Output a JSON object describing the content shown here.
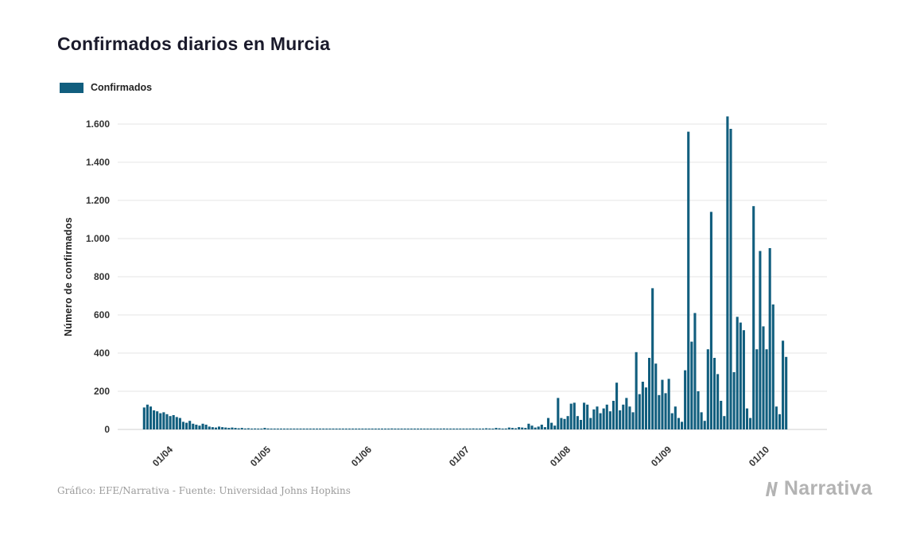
{
  "page": {
    "title": "Confirmados diarios en Murcia",
    "footer_credit": "Gráfico: EFE/Narrativa - Fuente: Universidad Johns Hopkins",
    "brand": "Narrativa"
  },
  "legend": {
    "label": "Confirmados",
    "color": "#115e7e"
  },
  "chart_data": {
    "type": "bar",
    "title": "Confirmados diarios en Murcia",
    "xlabel": "",
    "ylabel": "Número de confirmados",
    "ylim": [
      0,
      1600
    ],
    "grid": true,
    "legend_position": "top-left",
    "bar_color": "#115e7e",
    "ytick_labels": [
      "0",
      "200",
      "400",
      "600",
      "800",
      "1.000",
      "1.200",
      "1.400",
      "1.600"
    ],
    "xtick_labels": [
      "01/04",
      "01/05",
      "01/06",
      "01/07",
      "01/08",
      "01/09",
      "01/10"
    ],
    "xtick_indices": [
      7,
      37,
      68,
      98,
      129,
      160,
      190
    ],
    "series": [
      {
        "name": "Confirmados",
        "values": [
          115,
          130,
          120,
          100,
          95,
          85,
          90,
          80,
          70,
          75,
          65,
          60,
          40,
          35,
          45,
          30,
          25,
          20,
          30,
          25,
          15,
          12,
          10,
          15,
          12,
          10,
          8,
          10,
          8,
          6,
          8,
          5,
          6,
          4,
          5,
          3,
          4,
          8,
          5,
          3,
          2,
          4,
          3,
          2,
          2,
          3,
          2,
          1,
          2,
          3,
          2,
          4,
          3,
          2,
          1,
          2,
          3,
          4,
          2,
          3,
          2,
          1,
          2,
          3,
          4,
          3,
          2,
          2,
          2,
          1,
          2,
          3,
          2,
          1,
          1,
          2,
          5,
          3,
          2,
          1,
          2,
          1,
          3,
          2,
          1,
          1,
          2,
          3,
          2,
          1,
          2,
          3,
          5,
          2,
          1,
          2,
          1,
          2,
          3,
          2,
          4,
          5,
          3,
          2,
          4,
          6,
          5,
          3,
          8,
          6,
          4,
          5,
          10,
          8,
          6,
          12,
          10,
          8,
          30,
          20,
          10,
          15,
          25,
          12,
          60,
          35,
          20,
          165,
          60,
          55,
          70,
          135,
          140,
          70,
          50,
          140,
          130,
          60,
          105,
          120,
          85,
          110,
          130,
          95,
          150,
          245,
          100,
          130,
          165,
          120,
          90,
          405,
          185,
          250,
          220,
          375,
          740,
          345,
          180,
          260,
          190,
          265,
          85,
          120,
          60,
          40,
          310,
          1560,
          460,
          610,
          200,
          90,
          45,
          420,
          1140,
          375,
          290,
          150,
          70,
          1640,
          1575,
          300,
          590,
          560,
          520,
          110,
          60,
          1170,
          420,
          935,
          540,
          420,
          950,
          655,
          120,
          80,
          465,
          380
        ]
      }
    ]
  }
}
